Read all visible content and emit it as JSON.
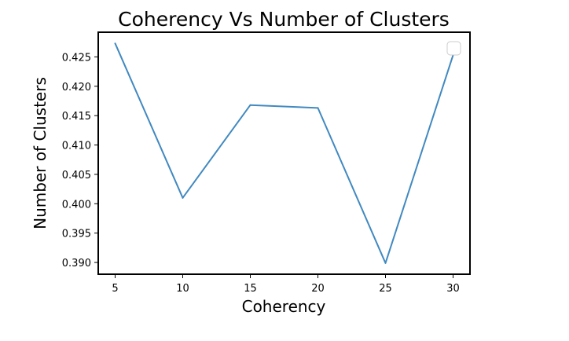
{
  "chart_data": {
    "type": "line",
    "title": "Coherency Vs Number of Clusters",
    "xlabel": "Coherency",
    "ylabel": "Number of Clusters",
    "x": [
      5,
      10,
      15,
      20,
      25,
      30
    ],
    "series": [
      {
        "values": [
          0.4273,
          0.401,
          0.4168,
          0.4163,
          0.3899,
          0.4253
        ]
      }
    ],
    "xlim": [
      3.75,
      31.25
    ],
    "ylim": [
      0.388,
      0.4292
    ],
    "xticks": [
      "5",
      "10",
      "15",
      "20",
      "25",
      "30"
    ],
    "yticks": [
      "0.390",
      "0.395",
      "0.400",
      "0.405",
      "0.410",
      "0.415",
      "0.420",
      "0.425"
    ],
    "grid": false,
    "legend": "top-right",
    "colors": {
      "line": "#4189c0",
      "axes": "#000000"
    }
  }
}
